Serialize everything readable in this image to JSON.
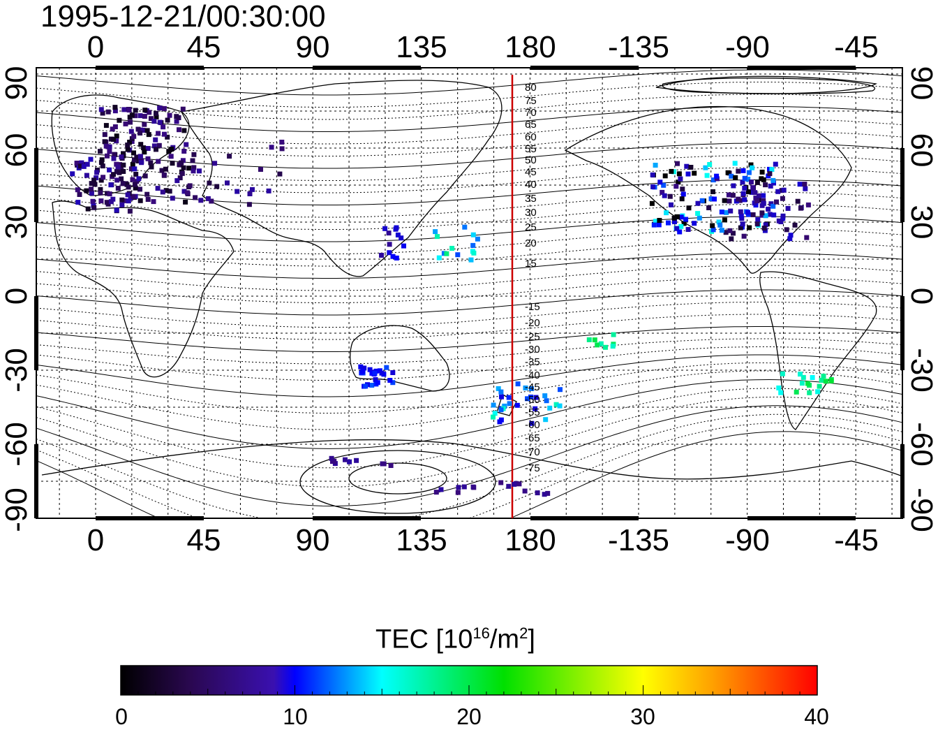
{
  "title": "1995-12-21/00:30:00",
  "map": {
    "top_lon_labels": [
      "0",
      "45",
      "90",
      "135",
      "180",
      "-135",
      "-90",
      "-45"
    ],
    "bottom_lon_labels": [
      "0",
      "45",
      "90",
      "135",
      "180",
      "-135",
      "-90",
      "-45"
    ],
    "left_lat_labels": [
      "90",
      "60",
      "30",
      "0",
      "-30",
      "-60",
      "-90"
    ],
    "right_lat_labels": [
      "90",
      "60",
      "30",
      "0",
      "-30",
      "-60",
      "-90"
    ],
    "meridian_line_lon": 173,
    "magnetic_lat_labels": [
      "80",
      "75",
      "70",
      "65",
      "60",
      "55",
      "50",
      "45",
      "40",
      "35",
      "30",
      "25",
      "20",
      "15",
      "-15",
      "-20",
      "-25",
      "-30",
      "-35",
      "-40",
      "-45",
      "-50",
      "-55",
      "-60",
      "-65",
      "-70",
      "-75"
    ],
    "colors": {
      "meridian": "#cc0000",
      "grid": "#000000"
    }
  },
  "colorbar": {
    "title_prefix": "TEC  [10",
    "title_sup1": "16",
    "title_mid": "/m",
    "title_sup2": "2",
    "title_suffix": "]",
    "tick_labels": [
      "0",
      "10",
      "20",
      "30",
      "40"
    ],
    "range": [
      0,
      40
    ],
    "colormap": [
      "#000000",
      "#3a0a7a",
      "#0000ff",
      "#00ffff",
      "#00ff00",
      "#ffff00",
      "#ff0000"
    ]
  }
}
